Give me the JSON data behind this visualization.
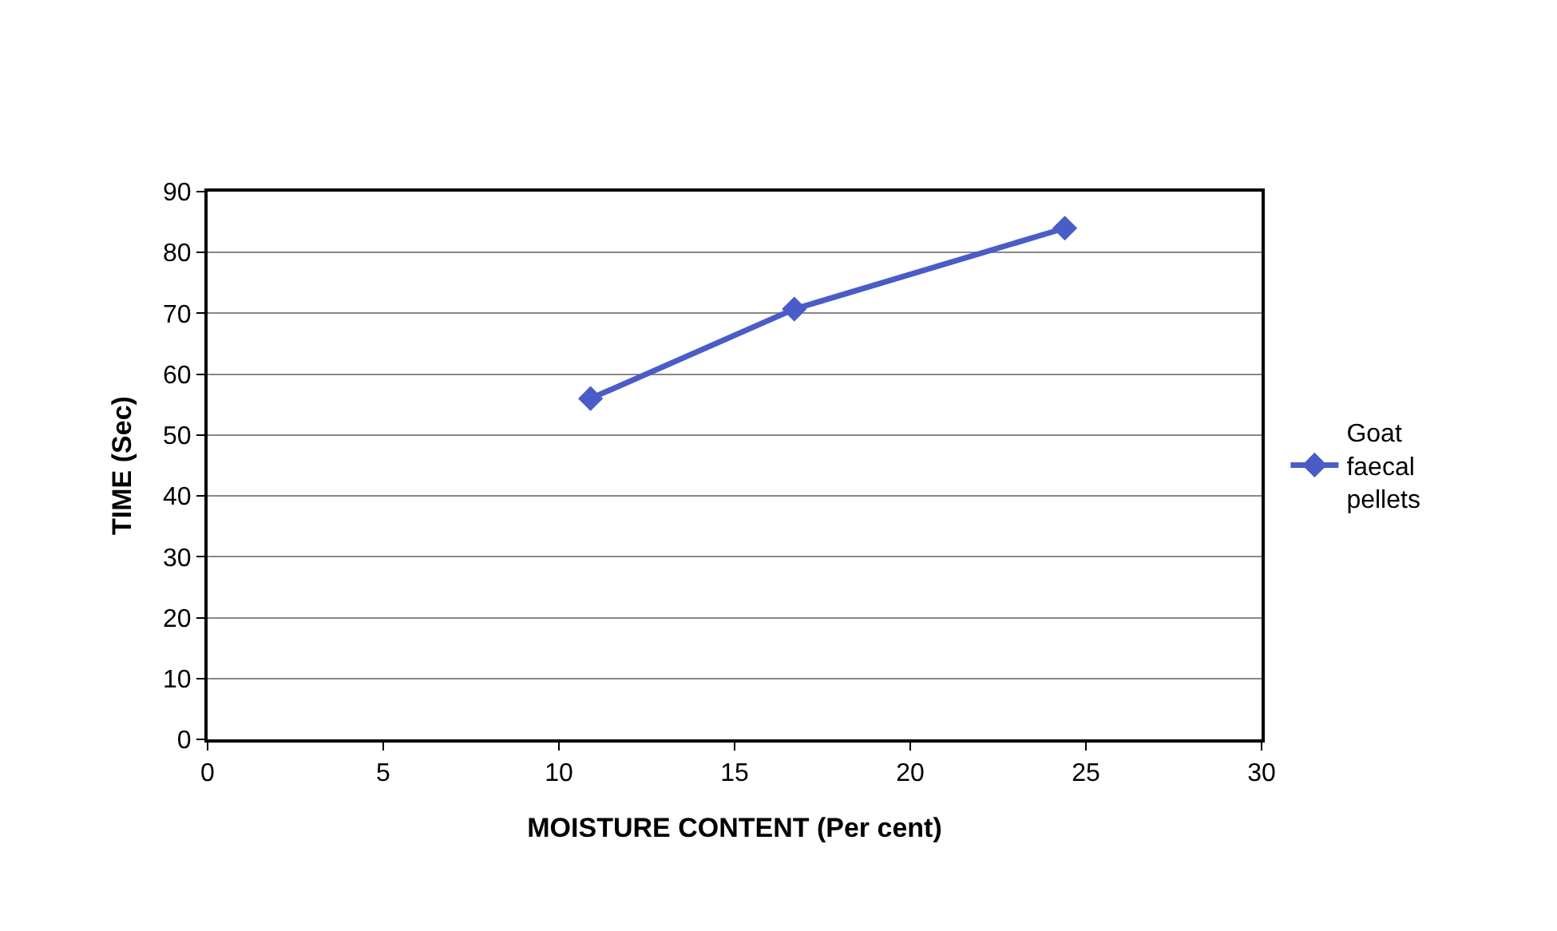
{
  "chart_data": {
    "type": "line",
    "xlabel": "MOISTURE CONTENT (Per cent)",
    "ylabel": "TIME (Sec)",
    "x": [
      10.9,
      16.7,
      24.4
    ],
    "series": [
      {
        "name": "Goat faecal pellets",
        "color": "#4a5cc8",
        "values": [
          56,
          70.7,
          84
        ]
      }
    ],
    "xlim": [
      0,
      30
    ],
    "xticks": [
      0,
      5,
      10,
      15,
      20,
      25,
      30
    ],
    "ylim": [
      0,
      90
    ],
    "yticks": [
      0,
      10,
      20,
      30,
      40,
      50,
      60,
      70,
      80,
      90
    ],
    "grid": "y",
    "legend": "right",
    "marker": "diamond",
    "line_style": "solid"
  }
}
